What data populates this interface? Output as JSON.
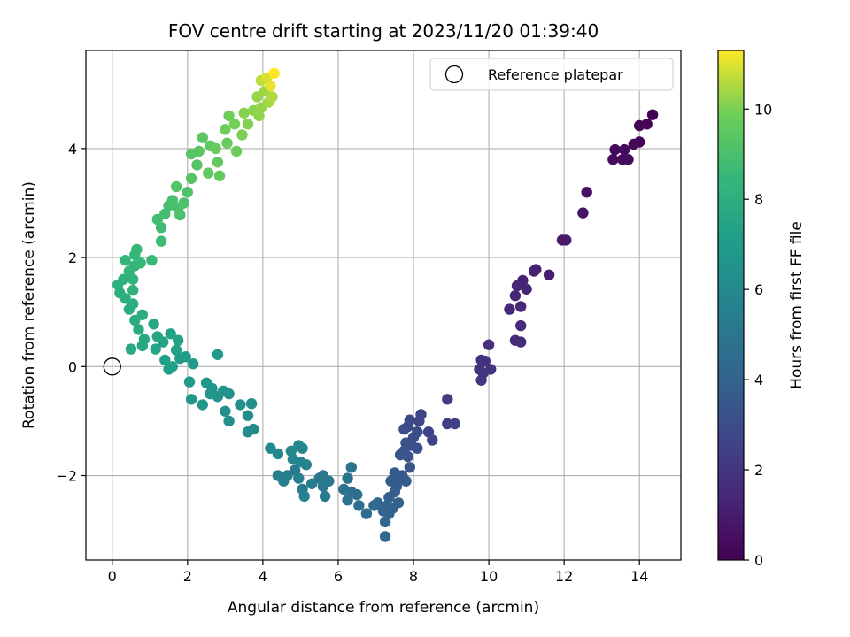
{
  "chart_data": {
    "type": "scatter",
    "title": "FOV centre drift starting at 2023/11/20 01:39:40",
    "xlabel": "Angular distance from reference (arcmin)",
    "ylabel": "Rotation from reference (arcmin)",
    "xlim": [
      -0.7,
      15.1
    ],
    "ylim": [
      -3.55,
      5.8
    ],
    "xticks": [
      0,
      2,
      4,
      6,
      8,
      10,
      12,
      14
    ],
    "xtick_labels": [
      "0",
      "2",
      "4",
      "6",
      "8",
      "10",
      "12",
      "14"
    ],
    "yticks": [
      -2,
      0,
      2,
      4
    ],
    "ytick_labels": [
      "−2",
      "0",
      "2",
      "4"
    ],
    "grid": true,
    "legend": {
      "position": "top-right",
      "entries": [
        {
          "label": "Reference platepar",
          "marker": "open-circle"
        }
      ]
    },
    "reference_point": {
      "x": 0,
      "y": 0
    },
    "colorbar": {
      "label": "Hours from first FF file",
      "colormap": "viridis",
      "range": [
        0,
        11.3
      ],
      "ticks": [
        0,
        2,
        4,
        6,
        8,
        10
      ],
      "tick_labels": [
        "0",
        "2",
        "4",
        "6",
        "8",
        "10"
      ]
    },
    "points": [
      {
        "x": 14.35,
        "y": 4.62,
        "c": 0.0
      },
      {
        "x": 14.2,
        "y": 4.45,
        "c": 0.05
      },
      {
        "x": 14.0,
        "y": 4.42,
        "c": 0.1
      },
      {
        "x": 14.0,
        "y": 4.12,
        "c": 0.15
      },
      {
        "x": 13.85,
        "y": 4.08,
        "c": 0.2
      },
      {
        "x": 13.6,
        "y": 3.98,
        "c": 0.25
      },
      {
        "x": 13.35,
        "y": 3.98,
        "c": 0.3
      },
      {
        "x": 13.3,
        "y": 3.8,
        "c": 0.35
      },
      {
        "x": 13.55,
        "y": 3.8,
        "c": 0.4
      },
      {
        "x": 13.7,
        "y": 3.8,
        "c": 0.45
      },
      {
        "x": 12.6,
        "y": 3.2,
        "c": 0.6
      },
      {
        "x": 12.5,
        "y": 2.82,
        "c": 0.7
      },
      {
        "x": 12.05,
        "y": 2.32,
        "c": 0.9
      },
      {
        "x": 11.95,
        "y": 2.32,
        "c": 0.95
      },
      {
        "x": 11.6,
        "y": 1.68,
        "c": 1.05
      },
      {
        "x": 11.25,
        "y": 1.78,
        "c": 1.1
      },
      {
        "x": 11.2,
        "y": 1.75,
        "c": 1.15
      },
      {
        "x": 10.9,
        "y": 1.58,
        "c": 1.2
      },
      {
        "x": 11.0,
        "y": 1.42,
        "c": 1.25
      },
      {
        "x": 10.75,
        "y": 1.48,
        "c": 1.3
      },
      {
        "x": 10.7,
        "y": 1.3,
        "c": 1.35
      },
      {
        "x": 10.85,
        "y": 1.1,
        "c": 1.4
      },
      {
        "x": 10.55,
        "y": 1.05,
        "c": 1.45
      },
      {
        "x": 10.85,
        "y": 0.75,
        "c": 1.5
      },
      {
        "x": 10.7,
        "y": 0.48,
        "c": 1.55
      },
      {
        "x": 10.85,
        "y": 0.45,
        "c": 1.6
      },
      {
        "x": 10.0,
        "y": 0.4,
        "c": 1.7
      },
      {
        "x": 9.8,
        "y": 0.12,
        "c": 1.8
      },
      {
        "x": 9.9,
        "y": 0.1,
        "c": 1.85
      },
      {
        "x": 9.75,
        "y": -0.05,
        "c": 1.9
      },
      {
        "x": 10.05,
        "y": -0.05,
        "c": 1.95
      },
      {
        "x": 9.85,
        "y": -0.12,
        "c": 2.0
      },
      {
        "x": 9.8,
        "y": -0.25,
        "c": 2.05
      },
      {
        "x": 8.9,
        "y": -0.6,
        "c": 2.3
      },
      {
        "x": 9.1,
        "y": -1.05,
        "c": 2.4
      },
      {
        "x": 8.9,
        "y": -1.05,
        "c": 2.45
      },
      {
        "x": 8.5,
        "y": -1.35,
        "c": 2.55
      },
      {
        "x": 8.4,
        "y": -1.2,
        "c": 2.6
      },
      {
        "x": 8.2,
        "y": -0.88,
        "c": 2.7
      },
      {
        "x": 8.15,
        "y": -1.0,
        "c": 2.75
      },
      {
        "x": 7.9,
        "y": -0.98,
        "c": 2.8
      },
      {
        "x": 7.85,
        "y": -1.1,
        "c": 2.85
      },
      {
        "x": 8.1,
        "y": -1.2,
        "c": 2.9
      },
      {
        "x": 7.75,
        "y": -1.15,
        "c": 3.0
      },
      {
        "x": 8.0,
        "y": -1.3,
        "c": 3.05
      },
      {
        "x": 7.95,
        "y": -1.45,
        "c": 3.1
      },
      {
        "x": 8.1,
        "y": -1.5,
        "c": 3.15
      },
      {
        "x": 7.8,
        "y": -1.4,
        "c": 3.2
      },
      {
        "x": 7.75,
        "y": -1.55,
        "c": 3.25
      },
      {
        "x": 7.65,
        "y": -1.62,
        "c": 3.3
      },
      {
        "x": 7.85,
        "y": -1.65,
        "c": 3.35
      },
      {
        "x": 7.9,
        "y": -1.85,
        "c": 3.4
      },
      {
        "x": 7.7,
        "y": -2.0,
        "c": 3.5
      },
      {
        "x": 7.6,
        "y": -2.05,
        "c": 3.55
      },
      {
        "x": 7.5,
        "y": -1.95,
        "c": 3.6
      },
      {
        "x": 7.8,
        "y": -2.1,
        "c": 3.65
      },
      {
        "x": 7.55,
        "y": -2.2,
        "c": 3.7
      },
      {
        "x": 7.4,
        "y": -2.1,
        "c": 3.75
      },
      {
        "x": 7.5,
        "y": -2.3,
        "c": 3.8
      },
      {
        "x": 7.35,
        "y": -2.4,
        "c": 3.85
      },
      {
        "x": 7.6,
        "y": -2.5,
        "c": 3.9
      },
      {
        "x": 7.45,
        "y": -2.6,
        "c": 3.95
      },
      {
        "x": 7.3,
        "y": -2.55,
        "c": 4.0
      },
      {
        "x": 7.35,
        "y": -2.7,
        "c": 4.05
      },
      {
        "x": 7.2,
        "y": -2.65,
        "c": 4.1
      },
      {
        "x": 7.05,
        "y": -2.5,
        "c": 4.15
      },
      {
        "x": 7.25,
        "y": -2.85,
        "c": 4.2
      },
      {
        "x": 7.25,
        "y": -3.12,
        "c": 4.25
      },
      {
        "x": 6.95,
        "y": -2.55,
        "c": 4.35
      },
      {
        "x": 6.75,
        "y": -2.7,
        "c": 4.45
      },
      {
        "x": 6.55,
        "y": -2.55,
        "c": 4.55
      },
      {
        "x": 6.5,
        "y": -2.35,
        "c": 4.6
      },
      {
        "x": 6.35,
        "y": -2.3,
        "c": 4.65
      },
      {
        "x": 6.25,
        "y": -2.45,
        "c": 4.7
      },
      {
        "x": 6.15,
        "y": -2.25,
        "c": 4.75
      },
      {
        "x": 6.35,
        "y": -1.85,
        "c": 4.85
      },
      {
        "x": 6.25,
        "y": -2.05,
        "c": 4.9
      },
      {
        "x": 5.75,
        "y": -2.1,
        "c": 5.0
      },
      {
        "x": 5.6,
        "y": -2.0,
        "c": 5.05
      },
      {
        "x": 5.5,
        "y": -2.05,
        "c": 5.1
      },
      {
        "x": 5.6,
        "y": -2.2,
        "c": 5.15
      },
      {
        "x": 5.65,
        "y": -2.38,
        "c": 5.2
      },
      {
        "x": 5.3,
        "y": -2.15,
        "c": 5.3
      },
      {
        "x": 5.05,
        "y": -2.25,
        "c": 5.35
      },
      {
        "x": 4.95,
        "y": -2.05,
        "c": 5.4
      },
      {
        "x": 4.85,
        "y": -1.9,
        "c": 5.45
      },
      {
        "x": 4.65,
        "y": -2.0,
        "c": 5.5
      },
      {
        "x": 4.55,
        "y": -2.1,
        "c": 5.55
      },
      {
        "x": 4.4,
        "y": -2.0,
        "c": 5.6
      },
      {
        "x": 5.1,
        "y": -2.38,
        "c": 5.65
      },
      {
        "x": 5.15,
        "y": -1.8,
        "c": 5.7
      },
      {
        "x": 5.0,
        "y": -1.75,
        "c": 5.75
      },
      {
        "x": 4.8,
        "y": -1.7,
        "c": 5.8
      },
      {
        "x": 5.05,
        "y": -1.5,
        "c": 5.85
      },
      {
        "x": 4.95,
        "y": -1.45,
        "c": 5.9
      },
      {
        "x": 4.75,
        "y": -1.55,
        "c": 5.95
      },
      {
        "x": 4.4,
        "y": -1.6,
        "c": 6.0
      },
      {
        "x": 4.2,
        "y": -1.5,
        "c": 6.05
      },
      {
        "x": 3.75,
        "y": -1.15,
        "c": 6.1
      },
      {
        "x": 3.6,
        "y": -1.2,
        "c": 6.15
      },
      {
        "x": 3.6,
        "y": -0.9,
        "c": 6.2
      },
      {
        "x": 3.7,
        "y": -0.68,
        "c": 6.25
      },
      {
        "x": 3.4,
        "y": -0.7,
        "c": 6.3
      },
      {
        "x": 3.1,
        "y": -1.0,
        "c": 6.35
      },
      {
        "x": 3.0,
        "y": -0.82,
        "c": 6.4
      },
      {
        "x": 3.1,
        "y": -0.5,
        "c": 6.45
      },
      {
        "x": 2.95,
        "y": -0.45,
        "c": 6.5
      },
      {
        "x": 2.8,
        "y": -0.55,
        "c": 6.55
      },
      {
        "x": 2.65,
        "y": -0.4,
        "c": 6.6
      },
      {
        "x": 2.6,
        "y": -0.5,
        "c": 6.65
      },
      {
        "x": 2.5,
        "y": -0.3,
        "c": 6.7
      },
      {
        "x": 2.4,
        "y": -0.7,
        "c": 6.75
      },
      {
        "x": 2.1,
        "y": -0.6,
        "c": 6.8
      },
      {
        "x": 2.8,
        "y": 0.22,
        "c": 6.85
      },
      {
        "x": 2.05,
        "y": -0.28,
        "c": 6.9
      },
      {
        "x": 2.15,
        "y": 0.05,
        "c": 6.95
      },
      {
        "x": 1.95,
        "y": 0.18,
        "c": 7.0
      },
      {
        "x": 1.8,
        "y": 0.15,
        "c": 7.05
      },
      {
        "x": 1.6,
        "y": 0.0,
        "c": 7.1
      },
      {
        "x": 1.5,
        "y": -0.05,
        "c": 7.15
      },
      {
        "x": 1.4,
        "y": 0.12,
        "c": 7.2
      },
      {
        "x": 1.7,
        "y": 0.3,
        "c": 7.25
      },
      {
        "x": 1.75,
        "y": 0.48,
        "c": 7.3
      },
      {
        "x": 1.55,
        "y": 0.6,
        "c": 7.35
      },
      {
        "x": 1.35,
        "y": 0.45,
        "c": 7.4
      },
      {
        "x": 1.15,
        "y": 0.32,
        "c": 7.45
      },
      {
        "x": 1.2,
        "y": 0.55,
        "c": 7.5
      },
      {
        "x": 1.1,
        "y": 0.78,
        "c": 7.55
      },
      {
        "x": 0.85,
        "y": 0.5,
        "c": 7.6
      },
      {
        "x": 0.8,
        "y": 0.38,
        "c": 7.65
      },
      {
        "x": 0.5,
        "y": 0.32,
        "c": 7.7
      },
      {
        "x": 0.7,
        "y": 0.68,
        "c": 7.75
      },
      {
        "x": 0.6,
        "y": 0.85,
        "c": 7.8
      },
      {
        "x": 0.8,
        "y": 0.95,
        "c": 7.85
      },
      {
        "x": 0.45,
        "y": 1.05,
        "c": 7.9
      },
      {
        "x": 0.55,
        "y": 1.15,
        "c": 7.95
      },
      {
        "x": 0.35,
        "y": 1.25,
        "c": 8.0
      },
      {
        "x": 0.2,
        "y": 1.35,
        "c": 8.05
      },
      {
        "x": 0.15,
        "y": 1.5,
        "c": 8.1
      },
      {
        "x": 0.3,
        "y": 1.6,
        "c": 8.15
      },
      {
        "x": 0.55,
        "y": 1.4,
        "c": 8.2
      },
      {
        "x": 0.55,
        "y": 1.6,
        "c": 8.25
      },
      {
        "x": 0.45,
        "y": 1.75,
        "c": 8.3
      },
      {
        "x": 0.6,
        "y": 1.85,
        "c": 8.35
      },
      {
        "x": 0.35,
        "y": 1.95,
        "c": 8.4
      },
      {
        "x": 0.6,
        "y": 2.05,
        "c": 8.45
      },
      {
        "x": 0.65,
        "y": 2.15,
        "c": 8.5
      },
      {
        "x": 0.75,
        "y": 1.9,
        "c": 8.55
      },
      {
        "x": 1.05,
        "y": 1.95,
        "c": 8.6
      },
      {
        "x": 1.3,
        "y": 2.3,
        "c": 8.7
      },
      {
        "x": 1.3,
        "y": 2.55,
        "c": 8.75
      },
      {
        "x": 1.2,
        "y": 2.7,
        "c": 8.8
      },
      {
        "x": 1.4,
        "y": 2.8,
        "c": 8.85
      },
      {
        "x": 1.5,
        "y": 2.95,
        "c": 8.9
      },
      {
        "x": 1.6,
        "y": 3.05,
        "c": 8.95
      },
      {
        "x": 1.75,
        "y": 2.9,
        "c": 9.0
      },
      {
        "x": 1.8,
        "y": 2.78,
        "c": 9.05
      },
      {
        "x": 1.9,
        "y": 3.0,
        "c": 9.1
      },
      {
        "x": 2.0,
        "y": 3.2,
        "c": 9.15
      },
      {
        "x": 1.7,
        "y": 3.3,
        "c": 9.2
      },
      {
        "x": 2.1,
        "y": 3.45,
        "c": 9.25
      },
      {
        "x": 2.25,
        "y": 3.7,
        "c": 9.3
      },
      {
        "x": 2.1,
        "y": 3.9,
        "c": 9.35
      },
      {
        "x": 2.3,
        "y": 3.95,
        "c": 9.4
      },
      {
        "x": 2.4,
        "y": 4.2,
        "c": 9.45
      },
      {
        "x": 2.6,
        "y": 4.05,
        "c": 9.5
      },
      {
        "x": 2.55,
        "y": 3.55,
        "c": 9.55
      },
      {
        "x": 2.8,
        "y": 3.75,
        "c": 9.6
      },
      {
        "x": 2.85,
        "y": 3.5,
        "c": 9.65
      },
      {
        "x": 2.75,
        "y": 4.0,
        "c": 9.7
      },
      {
        "x": 3.05,
        "y": 4.1,
        "c": 9.75
      },
      {
        "x": 3.3,
        "y": 3.95,
        "c": 9.8
      },
      {
        "x": 3.0,
        "y": 4.35,
        "c": 9.85
      },
      {
        "x": 3.1,
        "y": 4.6,
        "c": 9.9
      },
      {
        "x": 3.25,
        "y": 4.45,
        "c": 9.95
      },
      {
        "x": 3.45,
        "y": 4.25,
        "c": 10.0
      },
      {
        "x": 3.6,
        "y": 4.45,
        "c": 10.05
      },
      {
        "x": 3.5,
        "y": 4.65,
        "c": 10.1
      },
      {
        "x": 3.75,
        "y": 4.7,
        "c": 10.15
      },
      {
        "x": 3.9,
        "y": 4.6,
        "c": 10.2
      },
      {
        "x": 3.95,
        "y": 4.75,
        "c": 10.25
      },
      {
        "x": 3.85,
        "y": 4.95,
        "c": 10.3
      },
      {
        "x": 4.05,
        "y": 5.05,
        "c": 10.35
      },
      {
        "x": 4.15,
        "y": 4.85,
        "c": 10.45
      },
      {
        "x": 4.25,
        "y": 4.95,
        "c": 10.55
      },
      {
        "x": 3.95,
        "y": 5.25,
        "c": 10.7
      },
      {
        "x": 4.1,
        "y": 5.3,
        "c": 10.9
      },
      {
        "x": 4.2,
        "y": 5.15,
        "c": 11.1
      },
      {
        "x": 4.3,
        "y": 5.38,
        "c": 11.3
      }
    ]
  }
}
